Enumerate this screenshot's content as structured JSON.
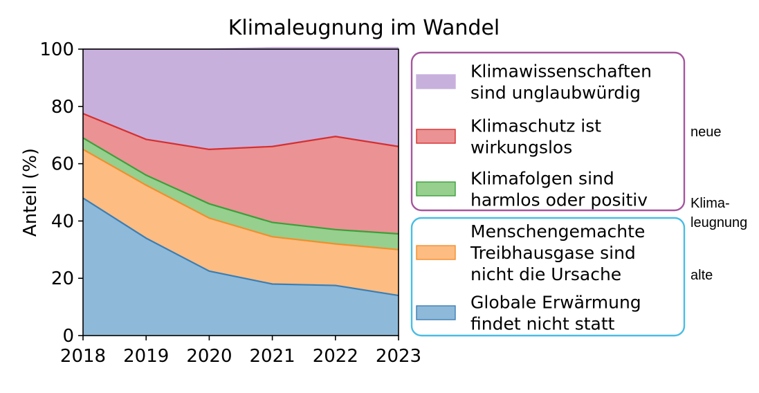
{
  "chart_data": {
    "type": "area",
    "stacked": true,
    "title": "Klimaleugnung im Wandel",
    "xlabel": "",
    "ylabel": "Anteil (%)",
    "x": [
      "2018",
      "2019",
      "2020",
      "2021",
      "2022",
      "2023"
    ],
    "ylim": [
      0,
      100
    ],
    "yticks": [
      "0",
      "20",
      "40",
      "60",
      "80",
      "100"
    ],
    "grid": false,
    "legend_position": "right",
    "series": [
      {
        "name": "Globale Erwärmung findet nicht statt",
        "legend_lines": [
          "Globale Erwärmung",
          "findet nicht statt"
        ],
        "values": [
          48,
          34,
          22.5,
          18,
          17.5,
          14
        ],
        "fill": "#8fb9d9",
        "line": "#3a7fb5"
      },
      {
        "name": "Menschengemachte Treibhausgase sind nicht die Ursache",
        "legend_lines": [
          "Menschengemachte",
          "Treibhausgase sind",
          "nicht die Ursache"
        ],
        "values": [
          17,
          18.5,
          18.5,
          16.5,
          14.5,
          16
        ],
        "fill": "#fdbc82",
        "line": "#f28e2b"
      },
      {
        "name": "Klimafolgen sind harmlos oder positiv",
        "legend_lines": [
          "Klimafolgen sind",
          "harmlos oder positiv"
        ],
        "values": [
          4,
          3.5,
          5,
          5,
          5,
          5.5
        ],
        "fill": "#96cf8e",
        "line": "#3aa03a"
      },
      {
        "name": "Klimaschutz ist wirkungslos",
        "legend_lines": [
          "Klimaschutz ist",
          "wirkungslos"
        ],
        "values": [
          8.5,
          12.5,
          19,
          26.5,
          32.5,
          30.5
        ],
        "fill": "#ea9294",
        "line": "#d62f2f"
      },
      {
        "name": "Klimawissenschaften sind unglaubwürdig",
        "legend_lines": [
          "Klimawissenschaften",
          "sind unglaubwürdig"
        ],
        "values": [
          22.5,
          31.5,
          35,
          34.5,
          31,
          34.5
        ],
        "fill": "#c8b0dd",
        "line": "#c8b0dd"
      }
    ],
    "legend_groups": [
      {
        "series": [
          4,
          3,
          2
        ],
        "border": "#a5569e"
      },
      {
        "series": [
          1,
          0
        ],
        "border": "#49bde4"
      }
    ],
    "side_labels": {
      "new": "neue",
      "denial_1": "Klima-",
      "denial_2": "leugnung",
      "old": "alte"
    }
  }
}
